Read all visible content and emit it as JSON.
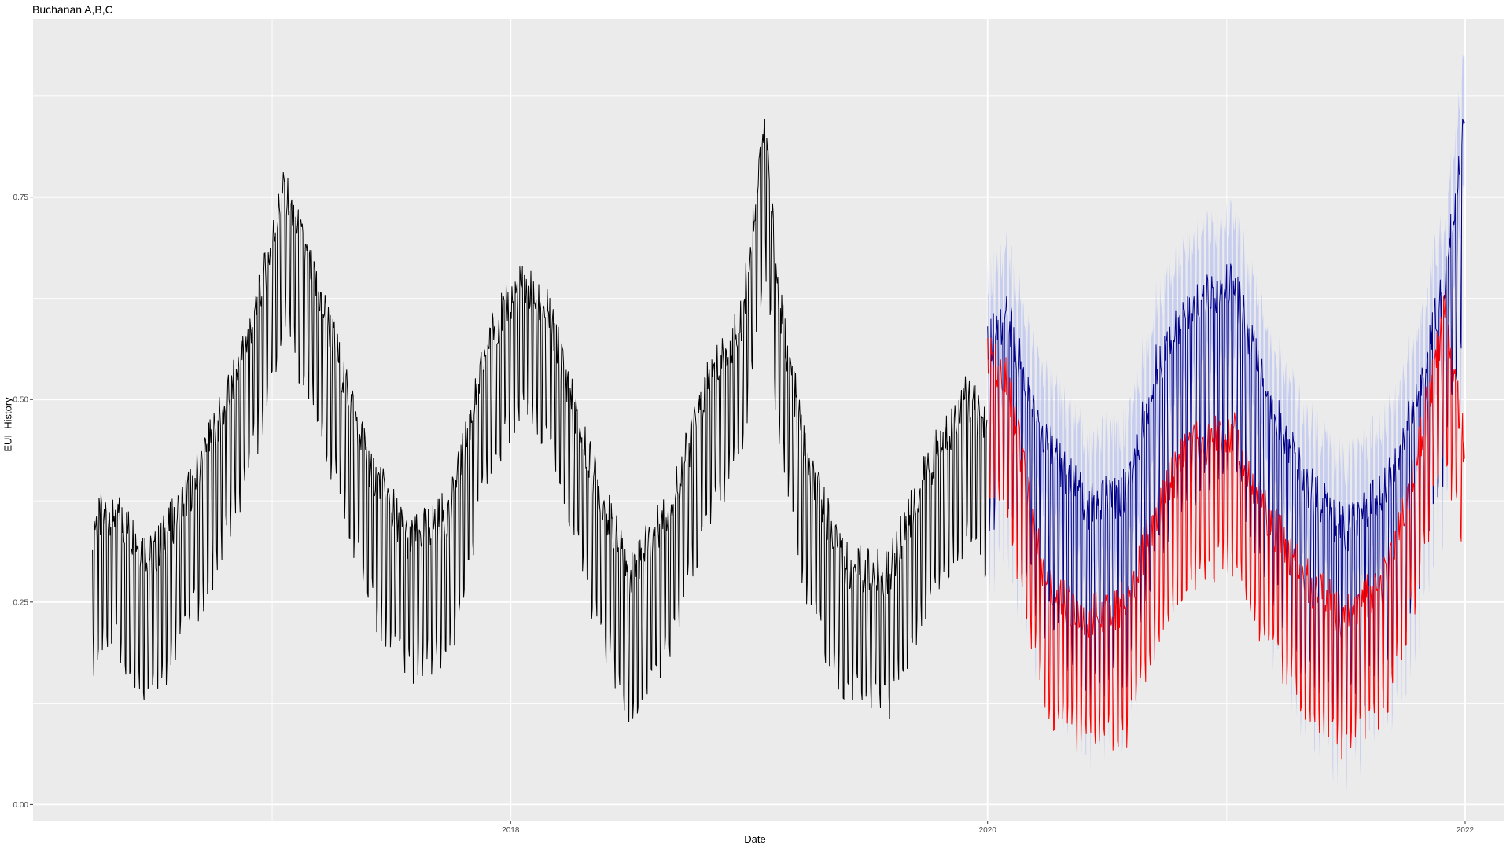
{
  "chart_data": {
    "type": "line",
    "title": "Buchanan A,B,C",
    "xlabel": "Date",
    "ylabel": "EUI_History",
    "xlim": [
      "2016-01-01",
      "2022-03-01"
    ],
    "ylim": [
      -0.02,
      0.97
    ],
    "x_ticks": [
      {
        "value": "2018-01-01",
        "label": "2018"
      },
      {
        "value": "2020-01-01",
        "label": "2020"
      },
      {
        "value": "2022-01-01",
        "label": "2022"
      }
    ],
    "y_ticks": [
      {
        "value": 0.0,
        "label": "0.00"
      },
      {
        "value": 0.25,
        "label": "0.25"
      },
      {
        "value": 0.5,
        "label": "0.50"
      },
      {
        "value": 0.75,
        "label": "0.75"
      }
    ],
    "grid": true,
    "background": "#ebebeb",
    "gridline_color": "#ffffff",
    "series": [
      {
        "color": "#000000",
        "range": [
          "2016-04-01",
          "2019-12-31"
        ],
        "weekly_swing": 0.16,
        "x": [
          "2016-04-01",
          "2016-05-01",
          "2016-07-01",
          "2016-09-01",
          "2016-11-01",
          "2016-12-15",
          "2017-01-20",
          "2017-02-15",
          "2017-04-01",
          "2017-06-01",
          "2017-08-01",
          "2017-10-01",
          "2017-12-01",
          "2018-01-20",
          "2018-03-01",
          "2018-05-01",
          "2018-07-01",
          "2018-09-01",
          "2018-11-01",
          "2018-12-20",
          "2019-01-25",
          "2019-02-15",
          "2019-04-01",
          "2019-06-01",
          "2019-08-01",
          "2019-10-01",
          "2019-12-01",
          "2019-12-31"
        ],
        "y": [
          0.28,
          0.3,
          0.24,
          0.33,
          0.45,
          0.57,
          0.7,
          0.63,
          0.52,
          0.35,
          0.26,
          0.3,
          0.52,
          0.58,
          0.54,
          0.36,
          0.22,
          0.3,
          0.46,
          0.53,
          0.78,
          0.56,
          0.35,
          0.23,
          0.22,
          0.35,
          0.44,
          0.4
        ]
      },
      {
        "color": "#00008b",
        "band_color": "#aab4f0",
        "range": [
          "2020-01-01",
          "2021-12-31"
        ],
        "weekly_swing": 0.22,
        "band_width": 0.08,
        "x": [
          "2020-01-01",
          "2020-02-01",
          "2020-03-01",
          "2020-04-01",
          "2020-06-01",
          "2020-08-01",
          "2020-09-15",
          "2020-11-01",
          "2021-01-10",
          "2021-03-01",
          "2021-05-01",
          "2021-07-01",
          "2021-09-01",
          "2021-10-15",
          "2021-12-01",
          "2021-12-31"
        ],
        "y": [
          0.48,
          0.52,
          0.42,
          0.36,
          0.28,
          0.3,
          0.45,
          0.52,
          0.56,
          0.42,
          0.31,
          0.25,
          0.3,
          0.4,
          0.56,
          0.75
        ]
      },
      {
        "color": "#ff0000",
        "range": [
          "2020-01-01",
          "2021-12-31"
        ],
        "weekly_swing": 0.15,
        "x": [
          "2020-01-01",
          "2020-02-01",
          "2020-03-01",
          "2020-04-01",
          "2020-06-01",
          "2020-08-01",
          "2020-09-15",
          "2020-11-01",
          "2021-01-10",
          "2021-03-01",
          "2021-05-01",
          "2021-07-01",
          "2021-09-01",
          "2021-10-15",
          "2021-12-01",
          "2021-12-31"
        ],
        "y": [
          0.5,
          0.46,
          0.33,
          0.21,
          0.17,
          0.19,
          0.3,
          0.38,
          0.4,
          0.3,
          0.22,
          0.17,
          0.22,
          0.35,
          0.55,
          0.38
        ]
      }
    ]
  }
}
